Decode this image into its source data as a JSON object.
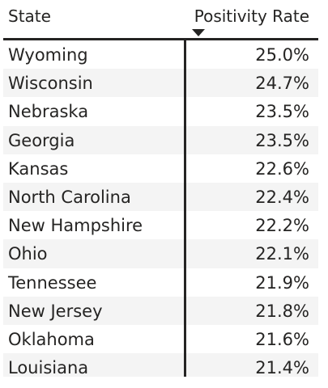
{
  "table": {
    "columns": {
      "state": "State",
      "rate": "Positivity Rate"
    },
    "sort": {
      "column": "Positivity Rate",
      "direction": "descending"
    },
    "rows": [
      {
        "state": "Wyoming",
        "rate": "25.0%"
      },
      {
        "state": "Wisconsin",
        "rate": "24.7%"
      },
      {
        "state": "Nebraska",
        "rate": "23.5%"
      },
      {
        "state": "Georgia",
        "rate": "23.5%"
      },
      {
        "state": "Kansas",
        "rate": "22.6%"
      },
      {
        "state": "North Carolina",
        "rate": "22.4%"
      },
      {
        "state": "New Hampshire",
        "rate": "22.2%"
      },
      {
        "state": "Ohio",
        "rate": "22.1%"
      },
      {
        "state": "Tennessee",
        "rate": "21.9%"
      },
      {
        "state": "New Jersey",
        "rate": "21.8%"
      },
      {
        "state": "Oklahoma",
        "rate": "21.6%"
      },
      {
        "state": "Louisiana",
        "rate": "21.4%"
      }
    ]
  },
  "colors": {
    "text": "#252423",
    "alt_row": "#f4f4f4",
    "background": "#ffffff"
  },
  "icons": {
    "sort": "sort-descending-icon"
  }
}
